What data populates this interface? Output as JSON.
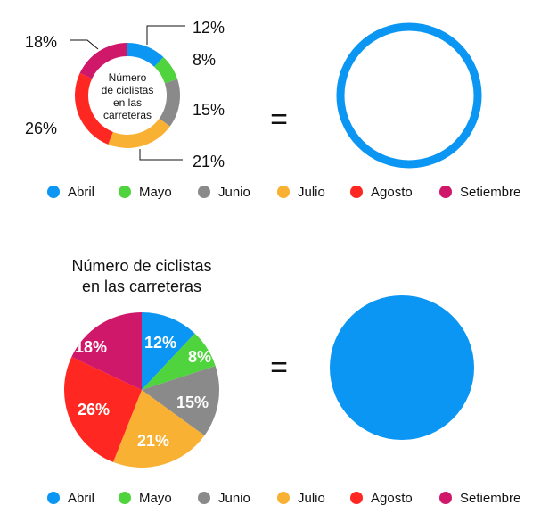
{
  "chart_data": [
    {
      "type": "pie",
      "variant": "donut",
      "center_label": [
        "Número",
        "de ciclistas",
        "en las",
        "carreteras"
      ],
      "categories": [
        "Abril",
        "Mayo",
        "Junio",
        "Julio",
        "Agosto",
        "Setiembre"
      ],
      "values": [
        12,
        8,
        15,
        21,
        26,
        18
      ],
      "labels": [
        "12%",
        "8%",
        "15%",
        "21%",
        "26%",
        "18%"
      ],
      "colors": [
        "#0A96F2",
        "#50D43E",
        "#8A8A8A",
        "#F8B133",
        "#FF2722",
        "#D0186A"
      ],
      "legend": "bottom"
    },
    {
      "type": "pie",
      "title": [
        "Número de ciclistas",
        "en las carreteras"
      ],
      "categories": [
        "Abril",
        "Mayo",
        "Junio",
        "Julio",
        "Agosto",
        "Setiembre"
      ],
      "values": [
        12,
        8,
        15,
        21,
        26,
        18
      ],
      "labels": [
        "12%",
        "8%",
        "15%",
        "21%",
        "26%",
        "18%"
      ],
      "colors": [
        "#0A96F2",
        "#50D43E",
        "#8A8A8A",
        "#F8B133",
        "#FF2722",
        "#D0186A"
      ],
      "legend": "bottom"
    }
  ],
  "equals_sign": "=",
  "accent": "#0A96F2"
}
